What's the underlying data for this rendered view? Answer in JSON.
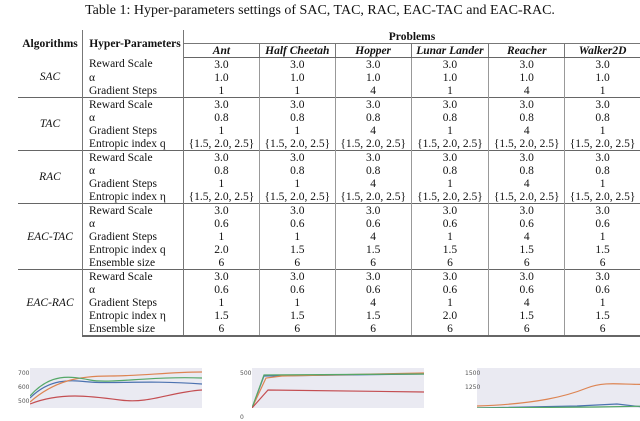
{
  "caption": "Table 1: Hyper-parameters settings of SAC, TAC, RAC, EAC-TAC and EAC-RAC.",
  "table": {
    "col_algorithms": "Algorithms",
    "col_hyper": "Hyper-Parameters",
    "col_problems": "Problems",
    "problems": [
      "Ant",
      "Half Cheetah",
      "Hopper",
      "Lunar Lander",
      "Reacher",
      "Walker2D"
    ],
    "groups": [
      {
        "algorithm": "SAC",
        "rows": [
          {
            "param": "Reward Scale",
            "values": [
              "3.0",
              "3.0",
              "3.0",
              "3.0",
              "3.0",
              "3.0"
            ]
          },
          {
            "param": "α",
            "values": [
              "1.0",
              "1.0",
              "1.0",
              "1.0",
              "1.0",
              "1.0"
            ]
          },
          {
            "param": "Gradient Steps",
            "values": [
              "1",
              "1",
              "4",
              "1",
              "4",
              "1"
            ]
          }
        ]
      },
      {
        "algorithm": "TAC",
        "rows": [
          {
            "param": "Reward Scale",
            "values": [
              "3.0",
              "3.0",
              "3.0",
              "3.0",
              "3.0",
              "3.0"
            ]
          },
          {
            "param": "α",
            "values": [
              "0.8",
              "0.8",
              "0.8",
              "0.8",
              "0.8",
              "0.8"
            ]
          },
          {
            "param": "Gradient Steps",
            "values": [
              "1",
              "1",
              "4",
              "1",
              "4",
              "1"
            ]
          },
          {
            "param": "Entropic index q",
            "values": [
              "{1.5, 2.0, 2.5}",
              "{1.5, 2.0, 2.5}",
              "{1.5, 2.0, 2.5}",
              "{1.5, 2.0, 2.5}",
              "{1.5, 2.0, 2.5}",
              "{1.5, 2.0, 2.5}"
            ]
          }
        ]
      },
      {
        "algorithm": "RAC",
        "rows": [
          {
            "param": "Reward Scale",
            "values": [
              "3.0",
              "3.0",
              "3.0",
              "3.0",
              "3.0",
              "3.0"
            ]
          },
          {
            "param": "α",
            "values": [
              "0.8",
              "0.8",
              "0.8",
              "0.8",
              "0.8",
              "0.8"
            ]
          },
          {
            "param": "Gradient Steps",
            "values": [
              "1",
              "1",
              "4",
              "1",
              "4",
              "1"
            ]
          },
          {
            "param": "Entropic index η",
            "values": [
              "{1.5, 2.0, 2.5}",
              "{1.5, 2.0, 2.5}",
              "{1.5, 2.0, 2.5}",
              "{1.5, 2.0, 2.5}",
              "{1.5, 2.0, 2.5}",
              "{1.5, 2.0, 2.5}"
            ]
          }
        ]
      },
      {
        "algorithm": "EAC-TAC",
        "rows": [
          {
            "param": "Reward Scale",
            "values": [
              "3.0",
              "3.0",
              "3.0",
              "3.0",
              "3.0",
              "3.0"
            ]
          },
          {
            "param": "α",
            "values": [
              "0.6",
              "0.6",
              "0.6",
              "0.6",
              "0.6",
              "0.6"
            ]
          },
          {
            "param": "Gradient Steps",
            "values": [
              "1",
              "1",
              "4",
              "1",
              "4",
              "1"
            ]
          },
          {
            "param": "Entropic index q",
            "values": [
              "2.0",
              "1.5",
              "1.5",
              "1.5",
              "1.5",
              "1.5"
            ]
          },
          {
            "param": "Ensemble size",
            "values": [
              "6",
              "6",
              "6",
              "6",
              "6",
              "6"
            ]
          }
        ]
      },
      {
        "algorithm": "EAC-RAC",
        "rows": [
          {
            "param": "Reward Scale",
            "values": [
              "3.0",
              "3.0",
              "3.0",
              "3.0",
              "3.0",
              "3.0"
            ]
          },
          {
            "param": "α",
            "values": [
              "0.6",
              "0.6",
              "0.6",
              "0.6",
              "0.6",
              "0.6"
            ]
          },
          {
            "param": "Gradient Steps",
            "values": [
              "1",
              "1",
              "4",
              "1",
              "4",
              "1"
            ]
          },
          {
            "param": "Entropic index η",
            "values": [
              "1.5",
              "1.5",
              "1.5",
              "2.0",
              "1.5",
              "1.5"
            ]
          },
          {
            "param": "Ensemble size",
            "values": [
              "6",
              "6",
              "6",
              "6",
              "6",
              "6"
            ]
          }
        ]
      }
    ]
  },
  "figures": [
    {
      "yticks": [
        "700",
        "600",
        "500"
      ],
      "series_colors": [
        "#4c72b0",
        "#dd8452",
        "#55a868",
        "#c44e52"
      ]
    },
    {
      "yticks": [
        "500",
        "0"
      ],
      "series_colors": [
        "#4c72b0",
        "#dd8452",
        "#55a868",
        "#c44e52"
      ]
    },
    {
      "yticks": [
        "1500",
        "1250"
      ],
      "series_colors": [
        "#4c72b0",
        "#dd8452",
        "#55a868"
      ]
    }
  ]
}
